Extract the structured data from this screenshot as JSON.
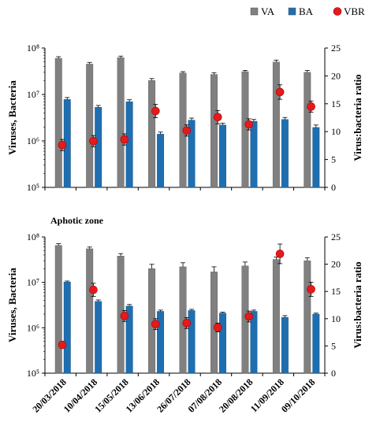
{
  "legend": [
    {
      "label": "VA",
      "color": "#808080",
      "kind": "bar"
    },
    {
      "label": "BA",
      "color": "#1f6fb0",
      "kind": "bar"
    },
    {
      "label": "VBR",
      "color": "#e41a1c",
      "kind": "point"
    }
  ],
  "chart_data": [
    {
      "type": "bar",
      "title": "",
      "categories": [
        "20/03/2018",
        "10/04/2018",
        "15/05/2018",
        "13/06/2018",
        "26/07/2018",
        "07/08/2018",
        "20/08/2018",
        "11/09/2018",
        "09/10/2018"
      ],
      "ylabel": "Viruses, Bacteria",
      "y2label": "Virus:bacteria ratio",
      "yscale": "log",
      "ylim": [
        100000,
        100000000
      ],
      "ytick_labels": [
        "10⁵",
        "10⁶",
        "10⁷",
        "10⁸"
      ],
      "y2lim": [
        0,
        25
      ],
      "y2ticks": [
        "0",
        "5",
        "10",
        "15",
        "20",
        "25"
      ],
      "series": [
        {
          "name": "VA",
          "values": [
            60000000,
            45000000,
            62000000,
            20000000,
            29000000,
            27000000,
            31000000,
            50000000,
            30000000
          ],
          "errors": [
            5000000,
            4000000,
            5000000,
            2000000,
            2000000,
            2500000,
            2000000,
            5000000,
            3000000
          ]
        },
        {
          "name": "BA",
          "values": [
            7800000,
            5300000,
            7000000,
            1400000,
            2800000,
            2200000,
            2650000,
            2900000,
            1950000
          ],
          "errors": [
            800000,
            500000,
            700000,
            150000,
            300000,
            200000,
            250000,
            300000,
            250000
          ]
        },
        {
          "name": "VBR",
          "axis": "right",
          "values": [
            7.6,
            8.3,
            8.6,
            13.7,
            10.2,
            12.6,
            11.3,
            17.1,
            14.5
          ],
          "errors": [
            1.0,
            1.0,
            1.0,
            1.2,
            1.0,
            1.2,
            1.0,
            1.3,
            1.0
          ]
        }
      ]
    },
    {
      "type": "bar",
      "title": "Aphotic zone",
      "categories": [
        "20/03/2018",
        "10/04/2018",
        "15/05/2018",
        "13/06/2018",
        "26/07/2018",
        "07/08/2018",
        "20/08/2018",
        "11/09/2018",
        "09/10/2018"
      ],
      "ylabel": "Viruses, Bacteria",
      "y2label": "Virus:bacteria ratio",
      "yscale": "log",
      "ylim": [
        100000,
        100000000
      ],
      "ytick_labels": [
        "10⁵",
        "10⁶",
        "10⁷",
        "10⁸"
      ],
      "y2lim": [
        0,
        25
      ],
      "y2ticks": [
        "0",
        "5",
        "10",
        "15",
        "20",
        "25"
      ],
      "series": [
        {
          "name": "VA",
          "values": [
            65000000,
            55000000,
            38000000,
            20000000,
            22000000,
            17000000,
            23000000,
            32000000,
            30000000
          ],
          "errors": [
            6000000,
            5000000,
            5000000,
            5000000,
            5000000,
            5000000,
            5000000,
            4000000,
            5000000
          ]
        },
        {
          "name": "BA",
          "values": [
            10200000,
            3800000,
            3000000,
            2300000,
            2400000,
            2100000,
            2300000,
            1700000,
            2000000
          ],
          "errors": [
            500000,
            300000,
            250000,
            150000,
            150000,
            100000,
            150000,
            150000,
            100000
          ]
        },
        {
          "name": "VBR",
          "axis": "right",
          "values": [
            5.2,
            15.3,
            10.5,
            9.0,
            9.2,
            8.4,
            10.4,
            21.9,
            15.4
          ],
          "errors": [
            0.6,
            1.2,
            1.0,
            1.0,
            1.0,
            0.8,
            1.0,
            1.8,
            1.3
          ]
        }
      ]
    }
  ]
}
